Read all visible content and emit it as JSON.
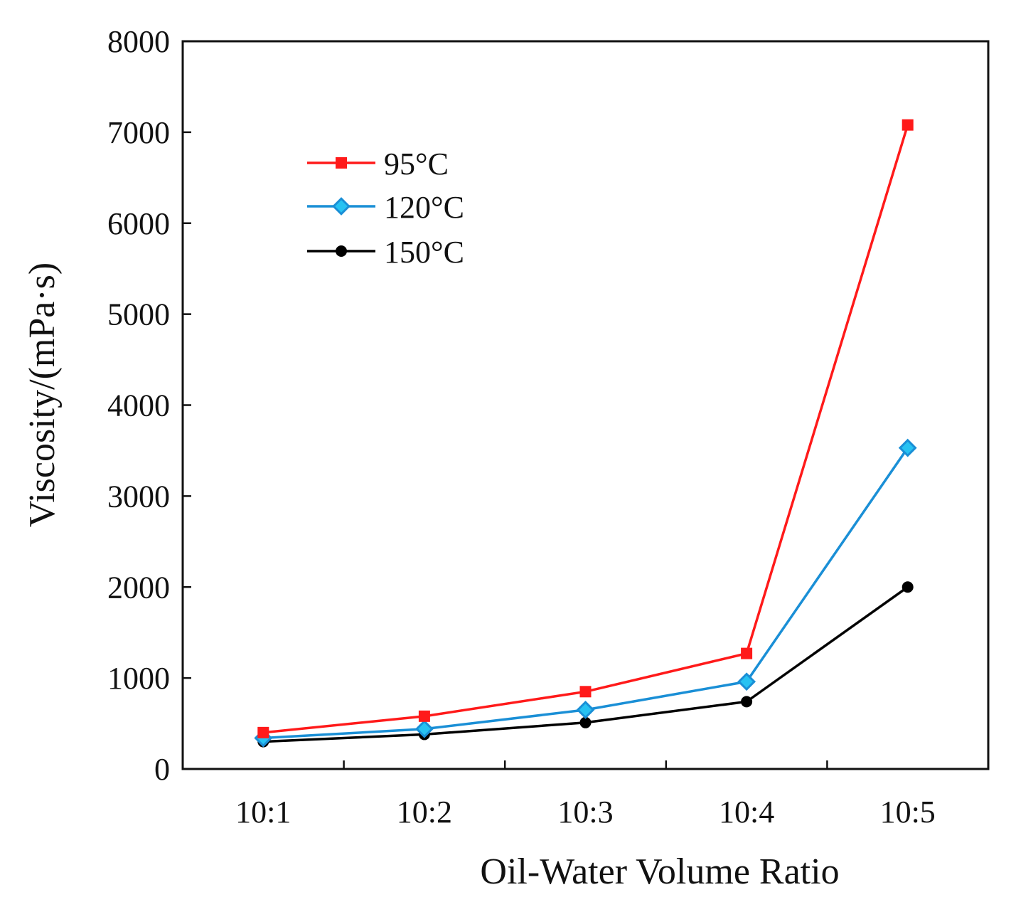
{
  "chart_data": {
    "type": "line",
    "title": "",
    "xlabel": "Oil-Water Volume Ratio",
    "ylabel": "Viscosity/(mPa·s)",
    "categories": [
      "10:1",
      "10:2",
      "10:3",
      "10:4",
      "10:5"
    ],
    "ylim": [
      0,
      8000
    ],
    "yticks": [
      "0",
      "1000",
      "2000",
      "3000",
      "4000",
      "5000",
      "6000",
      "7000",
      "8000"
    ],
    "grid": false,
    "legend_position": "upper-left",
    "series": [
      {
        "name": "95°C",
        "color": "#ff1a1a",
        "marker": "square",
        "values": [
          400,
          580,
          850,
          1270,
          7080
        ]
      },
      {
        "name": "120°C",
        "color": "#1a8fd6",
        "marker": "diamond",
        "values": [
          340,
          440,
          650,
          960,
          3530
        ]
      },
      {
        "name": "150°C",
        "color": "#000000",
        "marker": "circle",
        "values": [
          300,
          380,
          510,
          740,
          2000
        ]
      }
    ]
  }
}
